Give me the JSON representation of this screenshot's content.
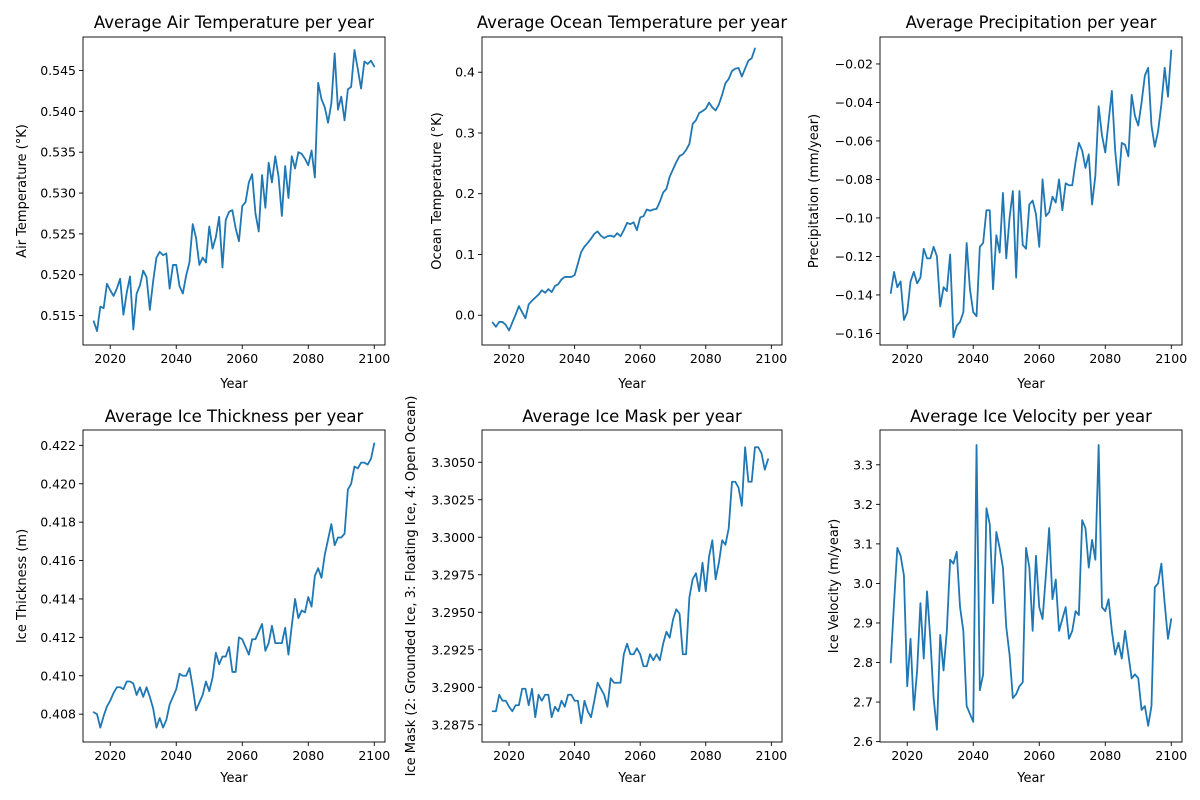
{
  "colors": {
    "line": "#1f77b4"
  },
  "chart_data": [
    {
      "type": "line",
      "title": "Average Air Temperature per year",
      "xlabel": "Year",
      "ylabel": "Air Temperature (°K)",
      "xlim": [
        2011.75,
        2103.25
      ],
      "ylim": [
        0.5114,
        0.5491
      ],
      "xticks": [
        2020,
        2040,
        2060,
        2080,
        2100
      ],
      "yticks": [
        0.515,
        0.52,
        0.525,
        0.53,
        0.535,
        0.54,
        0.545
      ],
      "ytick_decimals": 3,
      "grid": false,
      "series": [
        {
          "x_start": 2015,
          "y": [
            0.5143,
            0.5131,
            0.5161,
            0.5159,
            0.5189,
            0.5181,
            0.5174,
            0.5183,
            0.5195,
            0.5151,
            0.5178,
            0.5198,
            0.5133,
            0.5177,
            0.5187,
            0.5205,
            0.5197,
            0.5157,
            0.5192,
            0.5221,
            0.5228,
            0.5224,
            0.5226,
            0.5183,
            0.5212,
            0.5212,
            0.5186,
            0.5177,
            0.5199,
            0.5215,
            0.5262,
            0.5245,
            0.5212,
            0.5221,
            0.5215,
            0.5259,
            0.5232,
            0.5246,
            0.5271,
            0.5209,
            0.5267,
            0.5277,
            0.5279,
            0.5257,
            0.5241,
            0.5284,
            0.5289,
            0.5313,
            0.5323,
            0.5275,
            0.5253,
            0.5322,
            0.5282,
            0.5337,
            0.5313,
            0.5345,
            0.532,
            0.5272,
            0.5333,
            0.5294,
            0.5345,
            0.533,
            0.535,
            0.5348,
            0.5342,
            0.5334,
            0.5352,
            0.5319,
            0.5435,
            0.5415,
            0.5405,
            0.5386,
            0.541,
            0.5471,
            0.5402,
            0.5418,
            0.5389,
            0.5427,
            0.543,
            0.5475,
            0.5452,
            0.5428,
            0.5461,
            0.5458,
            0.5462,
            0.5455
          ]
        }
      ]
    },
    {
      "type": "line",
      "title": "Average Ocean Temperature per year",
      "xlabel": "Year",
      "ylabel": "Ocean Temperature (°K)",
      "xlim": [
        2011.75,
        2103.25
      ],
      "ylim": [
        -0.049,
        0.458
      ],
      "xticks": [
        2020,
        2040,
        2060,
        2080,
        2100
      ],
      "yticks": [
        0.0,
        0.1,
        0.2,
        0.3,
        0.4
      ],
      "ytick_decimals": 1,
      "grid": false,
      "series": [
        {
          "x_start": 2015,
          "y": [
            -0.012,
            -0.019,
            -0.011,
            -0.011,
            -0.016,
            -0.025,
            -0.012,
            0.001,
            0.015,
            0.005,
            -0.005,
            0.018,
            0.024,
            0.029,
            0.034,
            0.041,
            0.037,
            0.043,
            0.038,
            0.048,
            0.051,
            0.059,
            0.063,
            0.063,
            0.063,
            0.066,
            0.085,
            0.104,
            0.113,
            0.119,
            0.126,
            0.134,
            0.138,
            0.131,
            0.127,
            0.13,
            0.131,
            0.129,
            0.135,
            0.13,
            0.14,
            0.152,
            0.15,
            0.153,
            0.14,
            0.161,
            0.163,
            0.174,
            0.172,
            0.174,
            0.175,
            0.187,
            0.202,
            0.208,
            0.228,
            0.24,
            0.252,
            0.262,
            0.265,
            0.272,
            0.282,
            0.315,
            0.321,
            0.333,
            0.336,
            0.34,
            0.35,
            0.342,
            0.337,
            0.347,
            0.363,
            0.382,
            0.389,
            0.402,
            0.406,
            0.407,
            0.393,
            0.406,
            0.419,
            0.423,
            0.439
          ]
        }
      ]
    },
    {
      "type": "line",
      "title": "Average Precipitation per year",
      "xlabel": "Year",
      "ylabel": "Precipitation (mm/year)",
      "xlim": [
        2011.75,
        2103.25
      ],
      "ylim": [
        -0.166,
        -0.006
      ],
      "xticks": [
        2020,
        2040,
        2060,
        2080,
        2100
      ],
      "yticks": [
        -0.16,
        -0.14,
        -0.12,
        -0.1,
        -0.08,
        -0.06,
        -0.04,
        -0.02
      ],
      "ytick_decimals": 2,
      "grid": false,
      "series": [
        {
          "x_start": 2015,
          "y": [
            -0.139,
            -0.128,
            -0.136,
            -0.133,
            -0.153,
            -0.149,
            -0.133,
            -0.128,
            -0.134,
            -0.131,
            -0.116,
            -0.121,
            -0.121,
            -0.115,
            -0.12,
            -0.146,
            -0.136,
            -0.138,
            -0.119,
            -0.162,
            -0.156,
            -0.154,
            -0.149,
            -0.113,
            -0.137,
            -0.149,
            -0.151,
            -0.115,
            -0.113,
            -0.096,
            -0.096,
            -0.137,
            -0.109,
            -0.118,
            -0.087,
            -0.121,
            -0.1,
            -0.086,
            -0.131,
            -0.086,
            -0.114,
            -0.116,
            -0.093,
            -0.091,
            -0.098,
            -0.115,
            -0.08,
            -0.099,
            -0.097,
            -0.089,
            -0.092,
            -0.08,
            -0.096,
            -0.082,
            -0.083,
            -0.083,
            -0.071,
            -0.061,
            -0.065,
            -0.074,
            -0.067,
            -0.093,
            -0.078,
            -0.042,
            -0.057,
            -0.066,
            -0.05,
            -0.034,
            -0.065,
            -0.083,
            -0.061,
            -0.062,
            -0.068,
            -0.036,
            -0.047,
            -0.052,
            -0.04,
            -0.026,
            -0.022,
            -0.052,
            -0.063,
            -0.055,
            -0.041,
            -0.022,
            -0.037,
            -0.013
          ]
        }
      ]
    },
    {
      "type": "line",
      "title": "Average Ice Thickness per year",
      "xlabel": "Year",
      "ylabel": "Ice Thickness (m)",
      "xlim": [
        2011.75,
        2103.25
      ],
      "ylim": [
        0.40655,
        0.4228
      ],
      "xticks": [
        2020,
        2040,
        2060,
        2080,
        2100
      ],
      "yticks": [
        0.408,
        0.41,
        0.412,
        0.414,
        0.416,
        0.418,
        0.42,
        0.422
      ],
      "ytick_decimals": 3,
      "grid": false,
      "series": [
        {
          "x_start": 2015,
          "y": [
            0.4081,
            0.408,
            0.4073,
            0.4079,
            0.4084,
            0.4087,
            0.4091,
            0.4094,
            0.4094,
            0.4093,
            0.4097,
            0.4097,
            0.4096,
            0.409,
            0.4094,
            0.4089,
            0.4094,
            0.4089,
            0.4083,
            0.4073,
            0.4078,
            0.4073,
            0.4077,
            0.4085,
            0.4089,
            0.4093,
            0.4101,
            0.41,
            0.41,
            0.4104,
            0.4094,
            0.4082,
            0.4086,
            0.409,
            0.4097,
            0.4092,
            0.4099,
            0.4112,
            0.4106,
            0.411,
            0.411,
            0.4115,
            0.4102,
            0.4102,
            0.412,
            0.4119,
            0.4115,
            0.4111,
            0.4119,
            0.4119,
            0.4123,
            0.4127,
            0.4113,
            0.4117,
            0.4126,
            0.4117,
            0.4117,
            0.4117,
            0.4125,
            0.4111,
            0.4126,
            0.414,
            0.413,
            0.4134,
            0.4133,
            0.4141,
            0.4136,
            0.4152,
            0.4156,
            0.4151,
            0.4163,
            0.4171,
            0.4179,
            0.4168,
            0.4172,
            0.4172,
            0.4174,
            0.4197,
            0.42,
            0.4209,
            0.4208,
            0.4211,
            0.4211,
            0.421,
            0.4213,
            0.4221
          ]
        }
      ]
    },
    {
      "type": "line",
      "title": "Average Ice Mask per year",
      "xlabel": "Year",
      "ylabel": "Ice Mask (2: Grounded Ice, 3: Floating Ice, 4: Open Ocean)",
      "xlim": [
        2011.75,
        2103.25
      ],
      "ylim": [
        3.28635,
        3.30715
      ],
      "xticks": [
        2020,
        2040,
        2060,
        2080,
        2100
      ],
      "yticks": [
        3.2875,
        3.29,
        3.2925,
        3.295,
        3.2975,
        3.3,
        3.3025,
        3.305
      ],
      "ytick_decimals": 4,
      "grid": false,
      "series": [
        {
          "x_start": 2015,
          "y": [
            3.2884,
            3.2884,
            3.2895,
            3.2891,
            3.2891,
            3.2887,
            3.2884,
            3.2888,
            3.2888,
            3.2899,
            3.2899,
            3.2888,
            3.2899,
            3.288,
            3.2895,
            3.2891,
            3.2895,
            3.2895,
            3.288,
            3.2887,
            3.2884,
            3.2891,
            3.2887,
            3.2895,
            3.2895,
            3.2891,
            3.2891,
            3.2876,
            3.2891,
            3.2884,
            3.288,
            3.2891,
            3.2903,
            3.2899,
            3.2895,
            3.2887,
            3.2906,
            3.2903,
            3.2903,
            3.2903,
            3.2922,
            3.2929,
            3.2922,
            3.2922,
            3.2926,
            3.2922,
            3.2914,
            3.2914,
            3.2922,
            3.2918,
            3.2922,
            3.2918,
            3.2929,
            3.2937,
            3.2933,
            3.2945,
            3.2952,
            3.2949,
            3.2922,
            3.2922,
            3.296,
            3.2972,
            3.2976,
            3.2964,
            3.2983,
            3.2964,
            3.2987,
            3.2998,
            3.2972,
            3.2983,
            3.2998,
            3.2995,
            3.3006,
            3.3037,
            3.3037,
            3.3033,
            3.3021,
            3.306,
            3.3037,
            3.3037,
            3.306,
            3.306,
            3.3056,
            3.3045,
            3.3052
          ]
        }
      ]
    },
    {
      "type": "line",
      "title": "Average Ice Velocity per year",
      "xlabel": "Year",
      "ylabel": "Ice Velocity (m/year)",
      "xlim": [
        2011.75,
        2103.25
      ],
      "ylim": [
        2.599,
        3.388
      ],
      "xticks": [
        2020,
        2040,
        2060,
        2080,
        2100
      ],
      "yticks": [
        2.6,
        2.7,
        2.8,
        2.9,
        3.0,
        3.1,
        3.2,
        3.3
      ],
      "ytick_decimals": 1,
      "grid": false,
      "series": [
        {
          "x_start": 2015,
          "y": [
            2.8,
            2.95,
            3.09,
            3.07,
            3.02,
            2.74,
            2.86,
            2.68,
            2.78,
            2.95,
            2.81,
            2.98,
            2.86,
            2.71,
            2.63,
            2.87,
            2.78,
            2.88,
            3.06,
            3.05,
            3.08,
            2.94,
            2.88,
            2.69,
            2.67,
            2.65,
            3.35,
            2.73,
            2.77,
            3.19,
            3.15,
            2.95,
            3.13,
            3.09,
            3.04,
            2.89,
            2.82,
            2.71,
            2.72,
            2.74,
            2.75,
            3.09,
            3.04,
            2.88,
            3.07,
            2.94,
            2.91,
            3.02,
            3.14,
            2.96,
            3.01,
            2.88,
            2.91,
            2.94,
            2.86,
            2.88,
            2.93,
            2.92,
            3.16,
            3.14,
            3.04,
            3.11,
            3.06,
            3.35,
            2.94,
            2.93,
            2.96,
            2.88,
            2.82,
            2.85,
            2.81,
            2.88,
            2.82,
            2.76,
            2.77,
            2.76,
            2.68,
            2.69,
            2.64,
            2.69,
            2.99,
            3.0,
            3.05,
            2.95,
            2.86,
            2.91
          ]
        }
      ]
    }
  ]
}
